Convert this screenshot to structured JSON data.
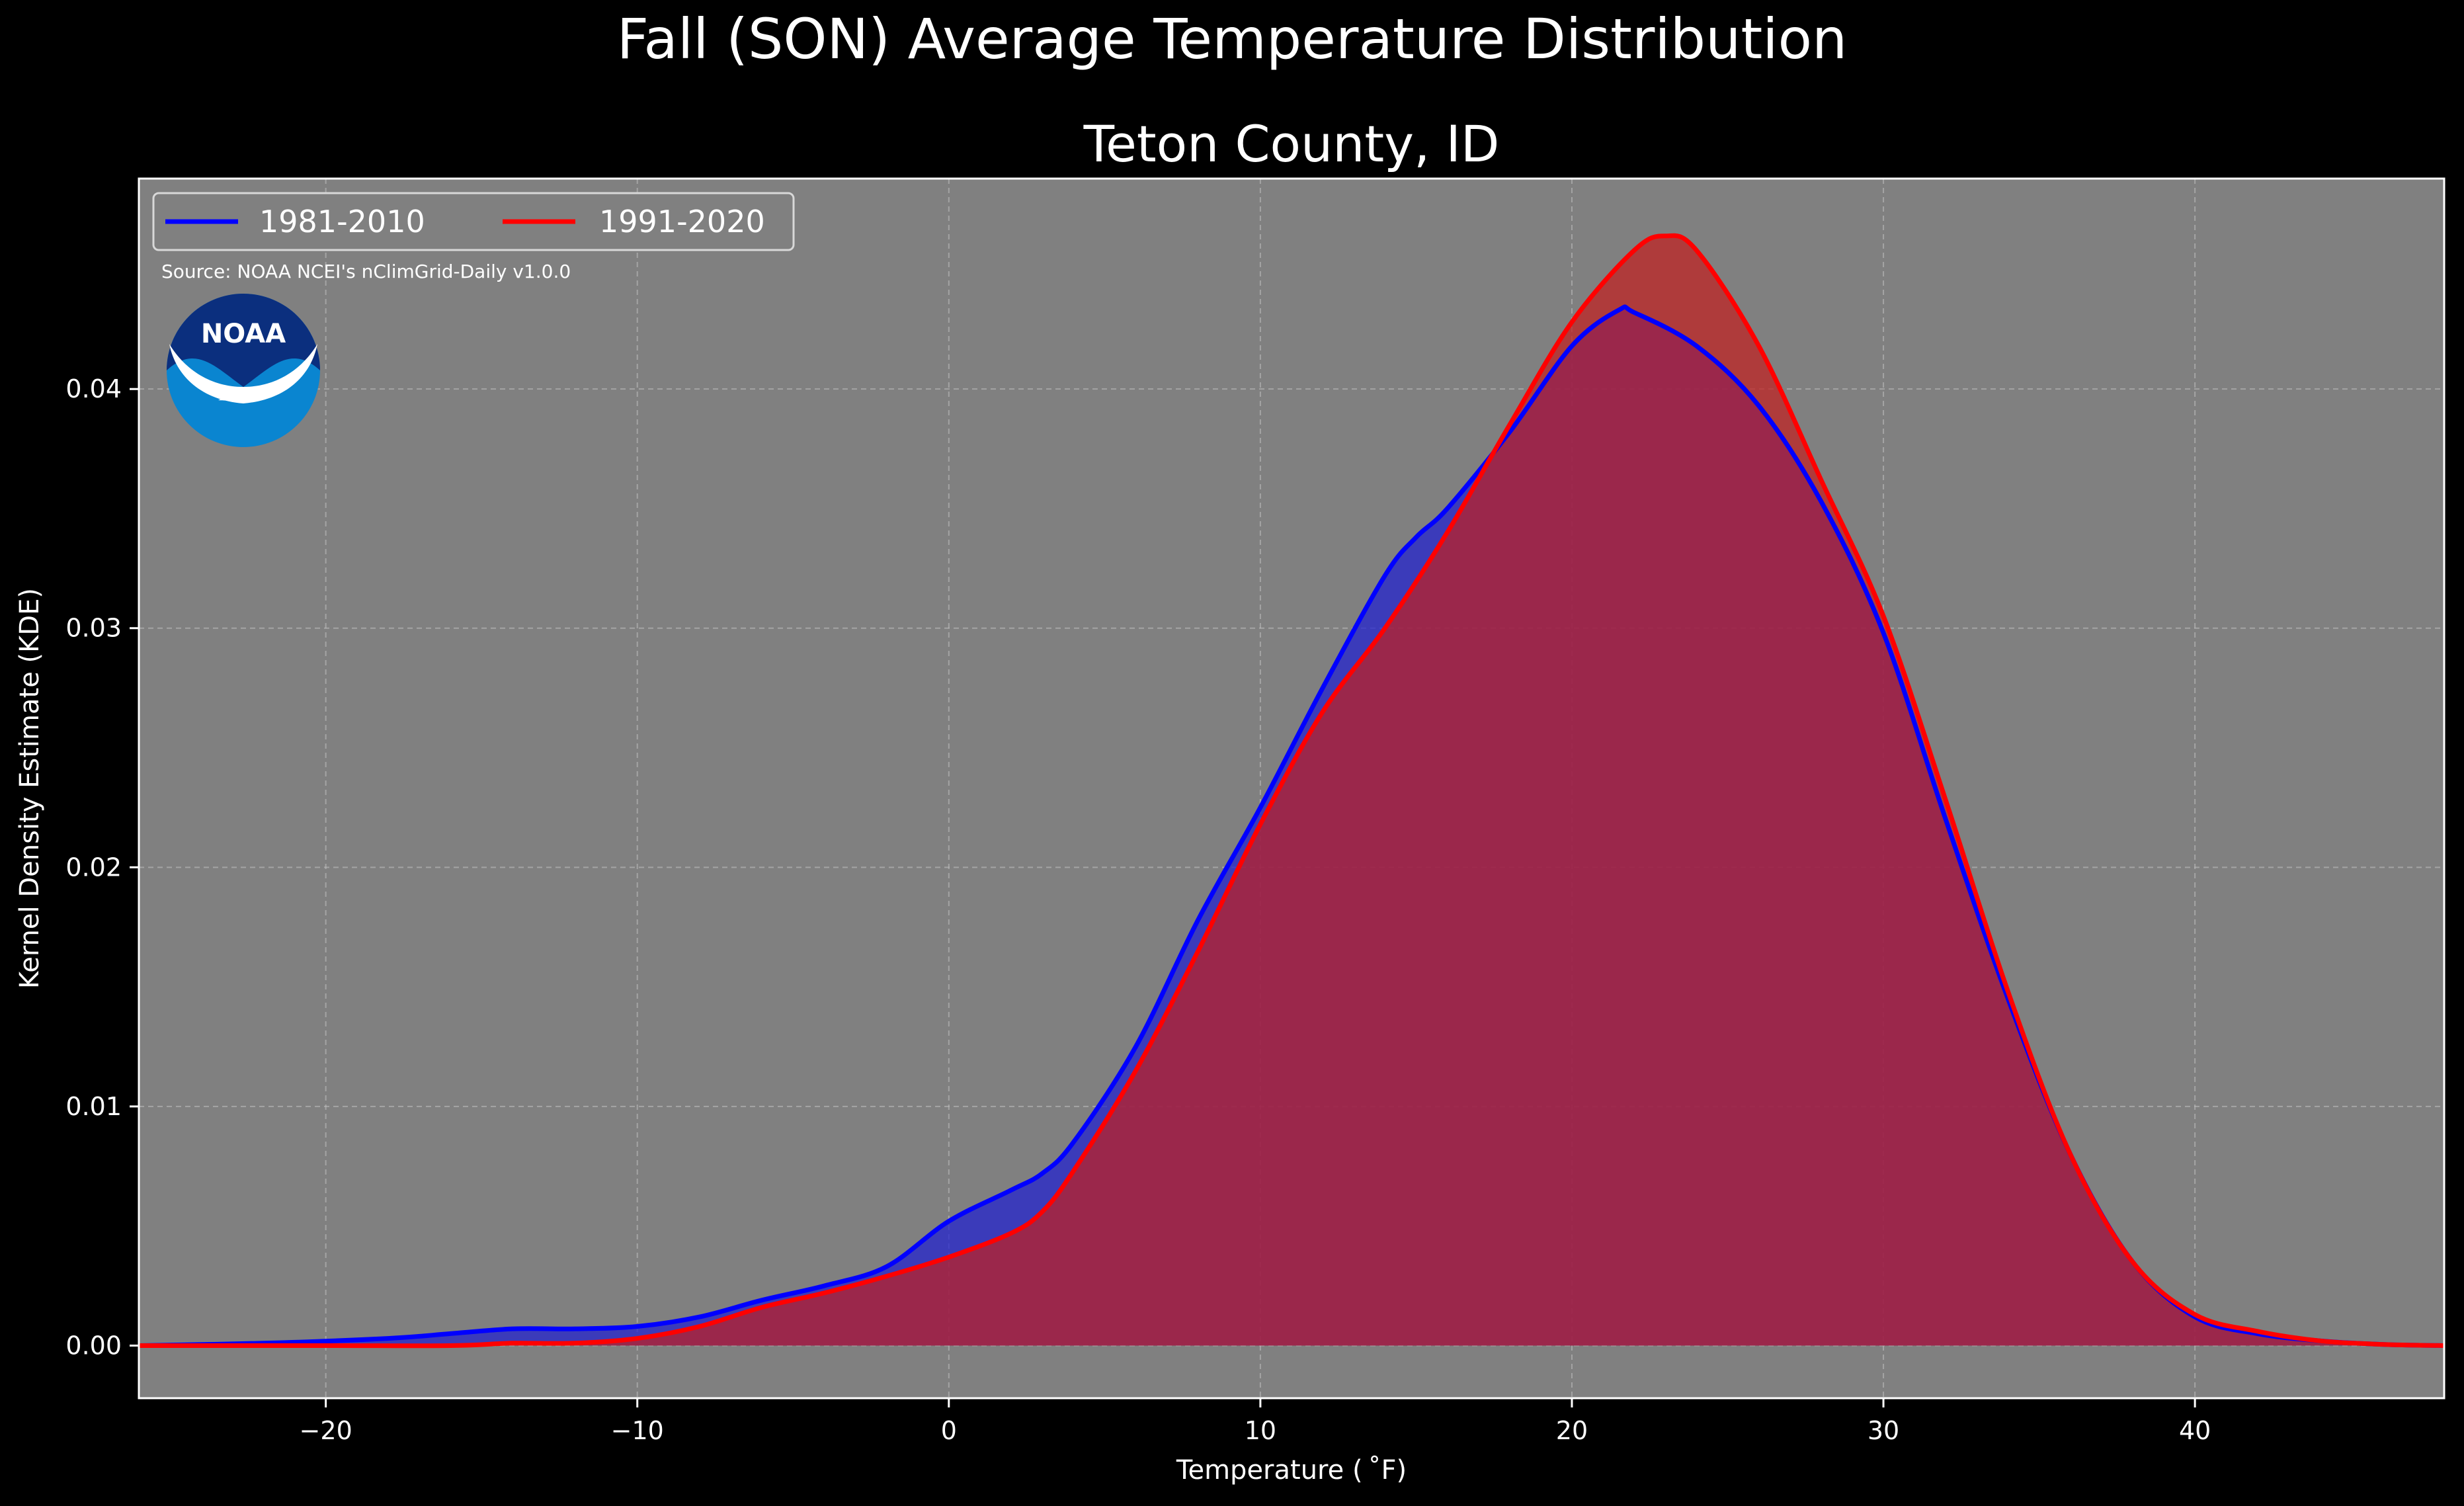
{
  "chart_data": {
    "type": "area",
    "title": "Fall (SON) Average Temperature Distribution",
    "subtitle": "Teton County, ID",
    "xlabel": "Temperature ($^\\circ$F)",
    "xlabel_display": "Temperature ( ˚F)",
    "ylabel": "Kernel Density Estimate (KDE)",
    "xlim": [
      -26,
      48
    ],
    "ylim": [
      -0.0022,
      0.0488
    ],
    "xticks": [
      -20,
      -10,
      0,
      10,
      20,
      30,
      40
    ],
    "xtick_labels": [
      "−20",
      "−10",
      "0",
      "10",
      "20",
      "30",
      "40"
    ],
    "yticks": [
      0.0,
      0.01,
      0.02,
      0.03,
      0.04
    ],
    "ytick_labels": [
      "0.00",
      "0.01",
      "0.02",
      "0.03",
      "0.04"
    ],
    "grid": true,
    "legend_position": "top-left",
    "source": "Source: NOAA NCEI's nClimGrid-Daily v1.0.0",
    "logo_text": "NOAA",
    "series": [
      {
        "name": "1981-2010",
        "color": "#0000ff",
        "fill_color": "#2020d0",
        "x": [
          -26,
          -22,
          -18,
          -16,
          -14,
          -12,
          -10,
          -8,
          -6,
          -4,
          -2,
          0,
          2,
          3,
          4,
          6,
          8,
          10,
          12,
          14,
          15,
          16,
          18,
          20,
          21.5,
          22,
          24,
          26,
          28,
          30,
          32,
          34,
          36,
          38,
          40,
          42,
          44,
          46,
          48
        ],
        "y": [
          0.0,
          0.0001,
          0.0003,
          0.0005,
          0.0007,
          0.0007,
          0.0008,
          0.0012,
          0.0019,
          0.0025,
          0.0033,
          0.0052,
          0.0065,
          0.0072,
          0.0085,
          0.0125,
          0.0178,
          0.0225,
          0.0275,
          0.0322,
          0.0338,
          0.035,
          0.0382,
          0.0418,
          0.0433,
          0.0432,
          0.0418,
          0.0393,
          0.0353,
          0.0298,
          0.022,
          0.0145,
          0.008,
          0.0035,
          0.0012,
          0.0005,
          0.0002,
          5e-05,
          0.0
        ]
      },
      {
        "name": "1991-2020",
        "color": "#ff0000",
        "fill_color": "#c02020",
        "x": [
          -26,
          -20,
          -16,
          -14,
          -12,
          -10,
          -8,
          -6,
          -4,
          -2,
          0,
          2,
          3,
          4,
          6,
          8,
          10,
          12,
          14,
          16,
          18,
          20,
          22,
          23,
          24,
          26,
          28,
          30,
          32,
          34,
          36,
          38,
          40,
          42,
          44,
          46,
          48
        ],
        "y": [
          0.0,
          0.0,
          0.0,
          0.0001,
          0.0001,
          0.0003,
          0.0008,
          0.0016,
          0.0022,
          0.0029,
          0.0037,
          0.0047,
          0.0056,
          0.0073,
          0.0115,
          0.0165,
          0.0218,
          0.0265,
          0.03,
          0.034,
          0.0385,
          0.0428,
          0.0458,
          0.0464,
          0.0458,
          0.0418,
          0.0362,
          0.0305,
          0.0228,
          0.0148,
          0.008,
          0.0035,
          0.0013,
          0.0006,
          0.0002,
          5e-05,
          0.0
        ]
      }
    ]
  }
}
